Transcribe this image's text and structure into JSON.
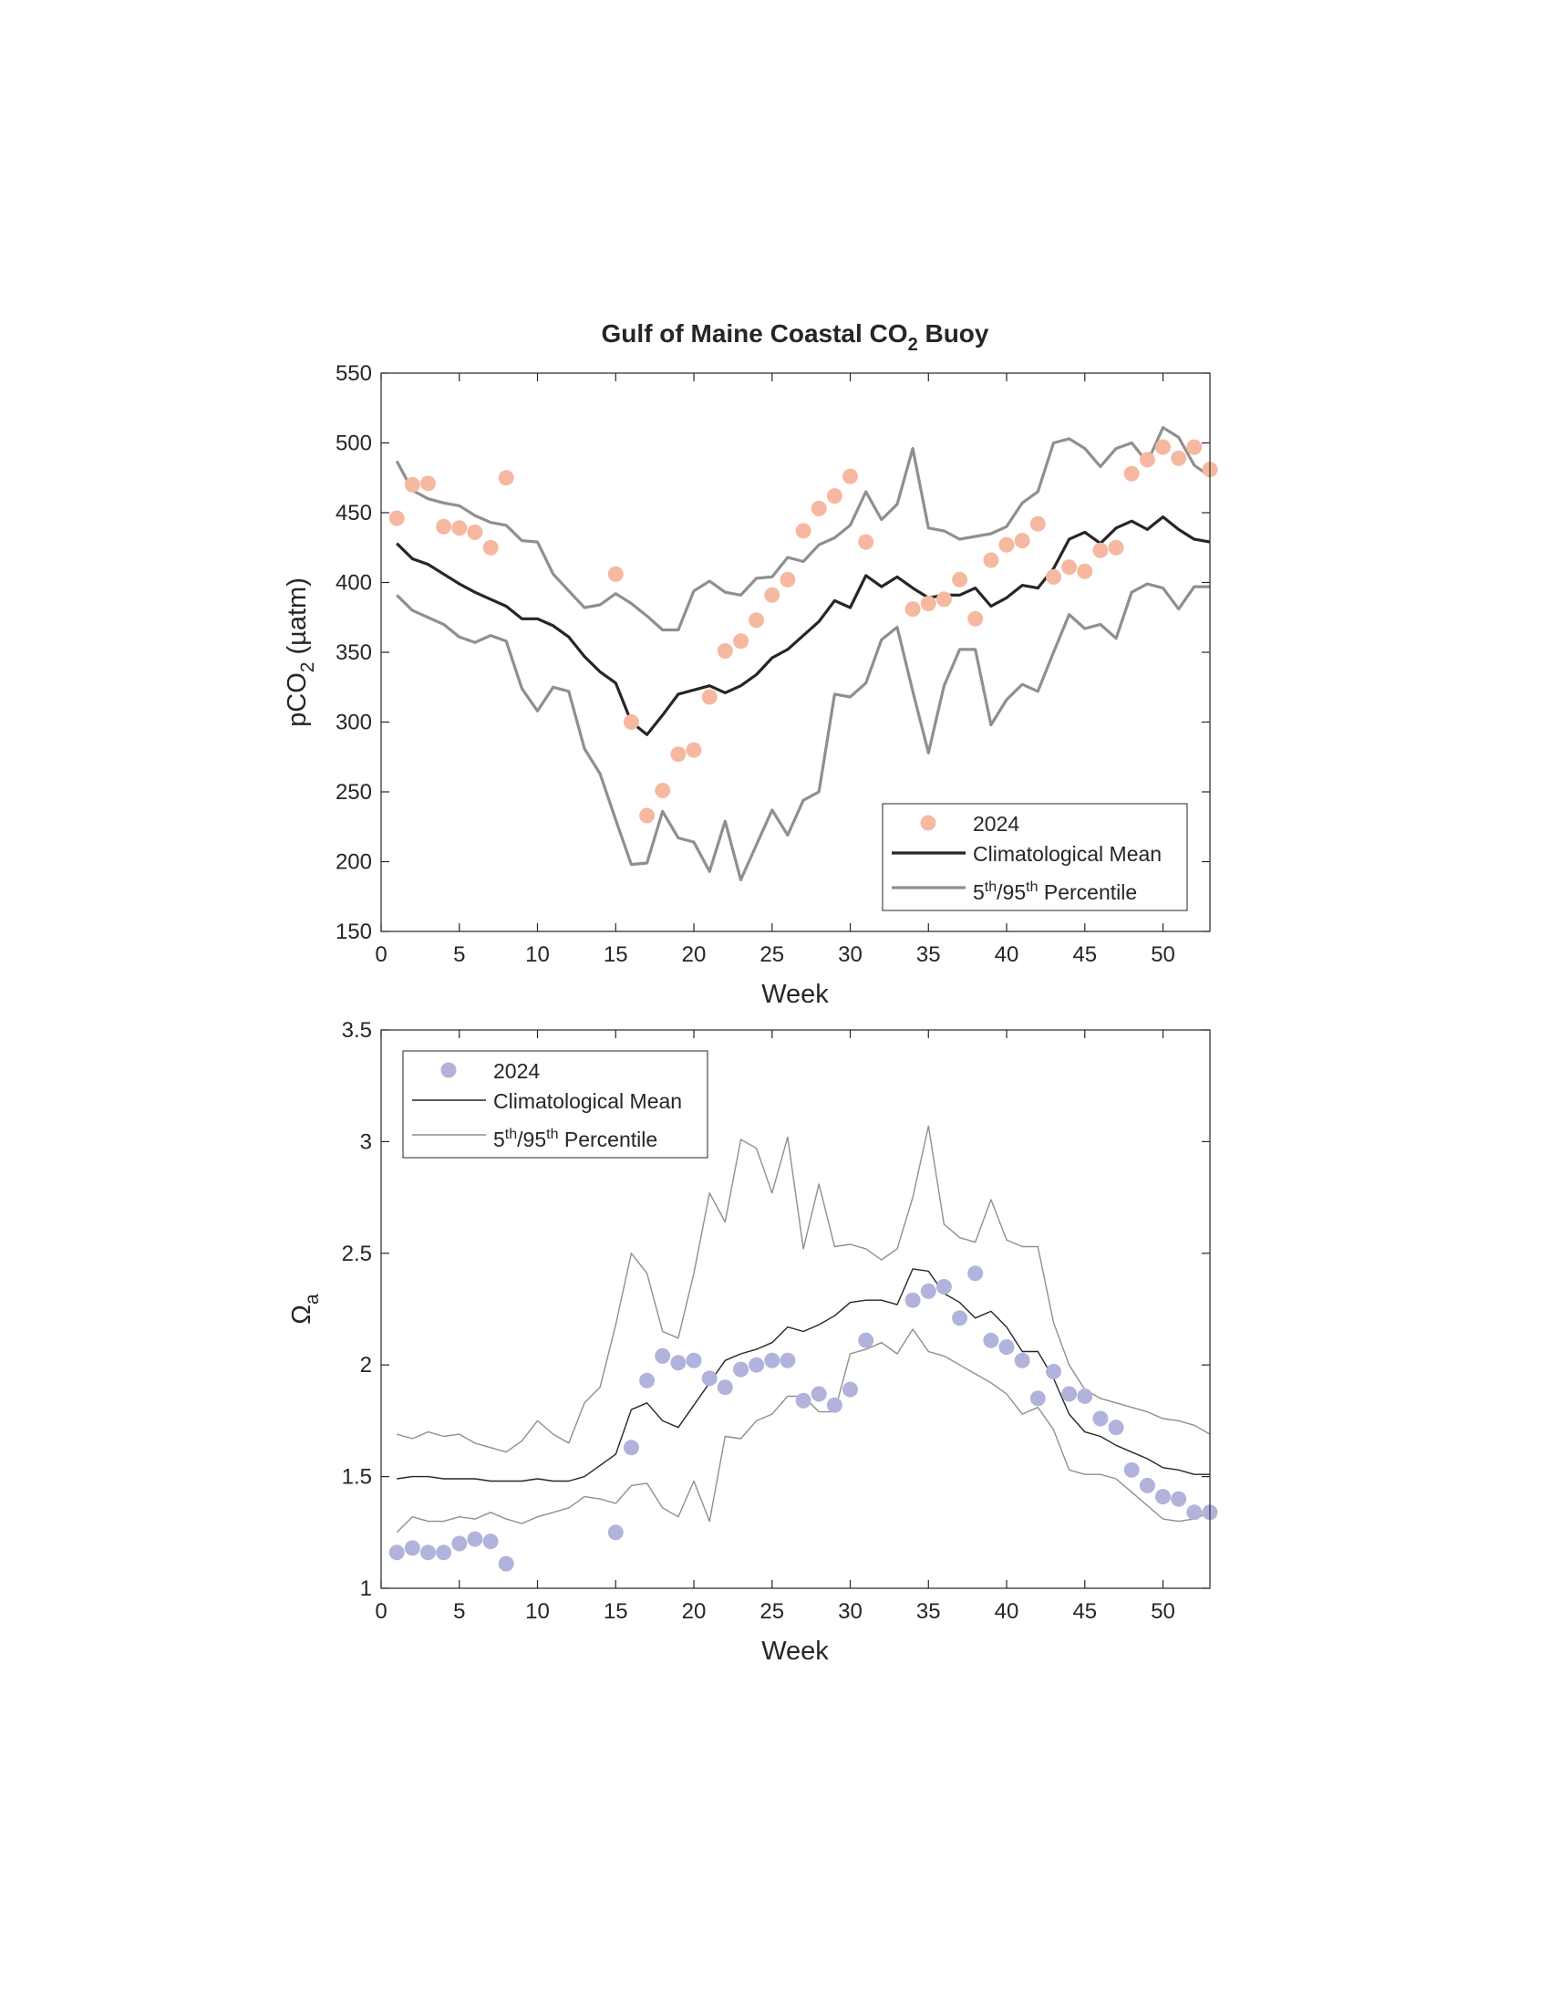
{
  "chart_data": [
    {
      "type": "line",
      "title_main": "Gulf of Maine Coastal CO",
      "title_sub": "2",
      "title_end": " Buoy",
      "xlabel": "Week",
      "ylabel_main": "pCO",
      "ylabel_sub": "2",
      "ylabel_end": " (µatm)",
      "xlim": [
        0,
        53
      ],
      "ylim": [
        150,
        550
      ],
      "xticks": [
        0,
        5,
        10,
        15,
        20,
        25,
        30,
        35,
        40,
        45,
        50
      ],
      "yticks": [
        150,
        200,
        250,
        300,
        350,
        400,
        450,
        500,
        550
      ],
      "legend": {
        "position": "lower-right",
        "item_2024": "2024",
        "item_mean": "Climatological Mean",
        "item_pct_a": "5",
        "item_pct_sup1": "th",
        "item_pct_b": "/95",
        "item_pct_sup2": "th",
        "item_pct_c": " Percentile"
      },
      "colors": {
        "points": "#f6b8a0",
        "mean": "#262626",
        "percentile": "#8f8f8f"
      },
      "line_widths": {
        "mean": 3.2,
        "percentile": 3.2
      },
      "x": [
        1,
        2,
        3,
        4,
        5,
        6,
        7,
        8,
        9,
        10,
        11,
        12,
        13,
        14,
        15,
        16,
        17,
        18,
        19,
        20,
        21,
        22,
        23,
        24,
        25,
        26,
        27,
        28,
        29,
        30,
        31,
        32,
        33,
        34,
        35,
        36,
        37,
        38,
        39,
        40,
        41,
        42,
        43,
        44,
        45,
        46,
        47,
        48,
        49,
        50,
        51,
        52,
        53
      ],
      "series": [
        {
          "name": "Climatological Mean",
          "values": [
            428,
            417,
            413,
            406,
            399,
            393,
            388,
            383,
            374,
            374,
            369,
            361,
            347,
            336,
            328,
            300,
            291,
            305,
            320,
            323,
            326,
            321,
            326,
            334,
            346,
            352,
            362,
            372,
            387,
            382,
            405,
            397,
            404,
            396,
            389,
            391,
            391,
            396,
            383,
            389,
            398,
            396,
            410,
            431,
            436,
            428,
            439,
            444,
            438,
            447,
            438,
            431,
            429
          ]
        },
        {
          "name": "5th Percentile",
          "values": [
            391,
            380,
            375,
            370,
            361,
            357,
            362,
            358,
            324,
            308,
            325,
            322,
            281,
            263,
            230,
            198,
            199,
            236,
            217,
            214,
            193,
            229,
            187,
            212,
            237,
            219,
            244,
            250,
            320,
            318,
            328,
            359,
            368,
            322,
            278,
            326,
            352,
            352,
            298,
            316,
            327,
            322,
            350,
            377,
            367,
            370,
            360,
            393,
            399,
            396,
            381,
            397,
            397
          ]
        },
        {
          "name": "95th Percentile",
          "values": [
            487,
            466,
            460,
            457,
            455,
            448,
            443,
            441,
            430,
            429,
            406,
            394,
            382,
            384,
            392,
            385,
            376,
            366,
            366,
            394,
            401,
            393,
            391,
            403,
            404,
            418,
            415,
            427,
            432,
            441,
            465,
            445,
            456,
            496,
            439,
            437,
            431,
            433,
            435,
            440,
            457,
            465,
            500,
            503,
            496,
            483,
            496,
            500,
            486,
            511,
            504,
            484,
            476
          ]
        }
      ],
      "points_2024": {
        "x": [
          1,
          2,
          3,
          4,
          5,
          6,
          7,
          8,
          15,
          16,
          17,
          18,
          19,
          20,
          21,
          22,
          23,
          24,
          25,
          26,
          27,
          28,
          29,
          30,
          31,
          34,
          35,
          36,
          37,
          38,
          39,
          40,
          41,
          42,
          43,
          44,
          45,
          46,
          47,
          48,
          49,
          50,
          51,
          52,
          53
        ],
        "y": [
          446,
          470,
          471,
          440,
          439,
          436,
          425,
          475,
          406,
          300,
          233,
          251,
          277,
          280,
          318,
          351,
          358,
          373,
          391,
          402,
          437,
          453,
          462,
          476,
          429,
          381,
          385,
          388,
          402,
          374,
          416,
          427,
          430,
          442,
          404,
          411,
          408,
          423,
          425,
          478,
          488,
          497,
          489,
          497,
          481
        ]
      }
    },
    {
      "type": "line",
      "xlabel": "Week",
      "ylabel_main": "Ω",
      "ylabel_sub": "a",
      "xlim": [
        0,
        53
      ],
      "ylim": [
        1,
        3.5
      ],
      "xticks": [
        0,
        5,
        10,
        15,
        20,
        25,
        30,
        35,
        40,
        45,
        50
      ],
      "yticks": [
        1,
        1.5,
        2,
        2.5,
        3,
        3.5
      ],
      "legend": {
        "position": "top-left",
        "item_2024": "2024",
        "item_mean": "Climatological Mean",
        "item_pct_a": "5",
        "item_pct_sup1": "th",
        "item_pct_b": "/95",
        "item_pct_sup2": "th",
        "item_pct_c": " Percentile"
      },
      "colors": {
        "points": "#b1b3dc",
        "mean": "#262626",
        "percentile": "#8f8f8f"
      },
      "line_widths": {
        "mean": 1.4,
        "percentile": 1.4
      },
      "x": [
        1,
        2,
        3,
        4,
        5,
        6,
        7,
        8,
        9,
        10,
        11,
        12,
        13,
        14,
        15,
        16,
        17,
        18,
        19,
        20,
        21,
        22,
        23,
        24,
        25,
        26,
        27,
        28,
        29,
        30,
        31,
        32,
        33,
        34,
        35,
        36,
        37,
        38,
        39,
        40,
        41,
        42,
        43,
        44,
        45,
        46,
        47,
        48,
        49,
        50,
        51,
        52,
        53
      ],
      "series": [
        {
          "name": "Climatological Mean",
          "values": [
            1.49,
            1.5,
            1.5,
            1.49,
            1.49,
            1.49,
            1.48,
            1.48,
            1.48,
            1.49,
            1.48,
            1.48,
            1.5,
            1.55,
            1.6,
            1.8,
            1.83,
            1.75,
            1.72,
            1.82,
            1.92,
            2.02,
            2.05,
            2.07,
            2.1,
            2.17,
            2.15,
            2.18,
            2.22,
            2.28,
            2.29,
            2.29,
            2.27,
            2.43,
            2.42,
            2.32,
            2.28,
            2.21,
            2.24,
            2.17,
            2.06,
            2.06,
            1.94,
            1.78,
            1.7,
            1.68,
            1.64,
            1.61,
            1.58,
            1.54,
            1.53,
            1.51,
            1.51
          ]
        },
        {
          "name": "5th Percentile",
          "values": [
            1.25,
            1.32,
            1.3,
            1.3,
            1.32,
            1.31,
            1.34,
            1.31,
            1.29,
            1.32,
            1.34,
            1.36,
            1.41,
            1.4,
            1.38,
            1.46,
            1.47,
            1.36,
            1.32,
            1.48,
            1.3,
            1.68,
            1.67,
            1.75,
            1.78,
            1.86,
            1.86,
            1.79,
            1.79,
            2.05,
            2.07,
            2.1,
            2.05,
            2.16,
            2.06,
            2.04,
            2.0,
            1.96,
            1.92,
            1.87,
            1.78,
            1.81,
            1.71,
            1.53,
            1.51,
            1.51,
            1.49,
            1.43,
            1.37,
            1.31,
            1.3,
            1.31,
            1.34
          ]
        },
        {
          "name": "95th Percentile",
          "values": [
            1.69,
            1.67,
            1.7,
            1.68,
            1.69,
            1.65,
            1.63,
            1.61,
            1.66,
            1.75,
            1.69,
            1.65,
            1.83,
            1.9,
            2.18,
            2.5,
            2.41,
            2.15,
            2.12,
            2.41,
            2.77,
            2.64,
            3.01,
            2.97,
            2.77,
            3.02,
            2.52,
            2.81,
            2.53,
            2.54,
            2.52,
            2.47,
            2.52,
            2.75,
            3.07,
            2.63,
            2.57,
            2.55,
            2.74,
            2.56,
            2.53,
            2.53,
            2.19,
            2.0,
            1.89,
            1.85,
            1.83,
            1.81,
            1.79,
            1.76,
            1.75,
            1.73,
            1.69
          ]
        }
      ],
      "points_2024": {
        "x": [
          1,
          2,
          3,
          4,
          5,
          6,
          7,
          8,
          15,
          16,
          17,
          18,
          19,
          20,
          21,
          22,
          23,
          24,
          25,
          26,
          27,
          28,
          29,
          30,
          31,
          34,
          35,
          36,
          37,
          38,
          39,
          40,
          41,
          42,
          43,
          44,
          45,
          46,
          47,
          48,
          49,
          50,
          51,
          52,
          53
        ],
        "y": [
          1.16,
          1.18,
          1.16,
          1.16,
          1.2,
          1.22,
          1.21,
          1.11,
          1.25,
          1.63,
          1.93,
          2.04,
          2.01,
          2.02,
          1.94,
          1.9,
          1.98,
          2.0,
          2.02,
          2.02,
          1.84,
          1.87,
          1.82,
          1.89,
          2.11,
          2.29,
          2.33,
          2.35,
          2.21,
          2.41,
          2.11,
          2.08,
          2.02,
          1.85,
          1.97,
          1.87,
          1.86,
          1.76,
          1.72,
          1.53,
          1.46,
          1.41,
          1.4,
          1.34,
          1.34
        ]
      }
    }
  ]
}
